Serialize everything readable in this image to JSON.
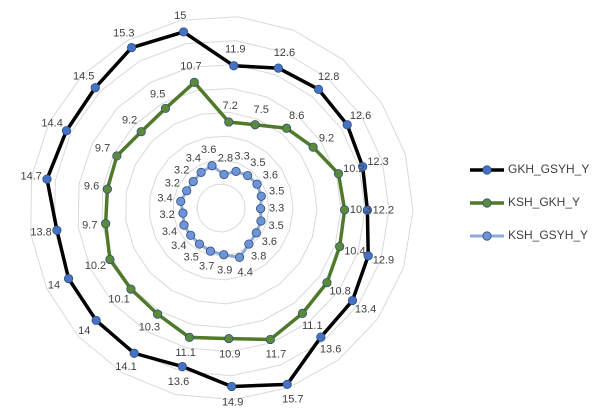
{
  "chart_data": {
    "type": "radar",
    "categories": [
      null,
      null,
      null,
      null,
      null,
      null,
      null,
      null,
      null,
      null,
      null,
      null,
      null,
      null,
      null,
      null,
      null,
      null,
      null,
      null,
      null
    ],
    "series": [
      {
        "name": "GKH_GSYH_Y",
        "color": "#000000",
        "marker_color": "#4472c4",
        "line_width": 3.5,
        "values": [
          15.0,
          11.9,
          12.6,
          12.8,
          12.6,
          12.3,
          12.2,
          12.9,
          13.4,
          13.6,
          15.7,
          14.9,
          13.6,
          14.1,
          14.0,
          14.0,
          13.8,
          14.7,
          14.4,
          14.5,
          15.3
        ]
      },
      {
        "name": "KSH_GKH_Y",
        "color": "#4e7a2a",
        "marker_color": "#5b8a3a",
        "line_width": 3.5,
        "values": [
          10.7,
          7.2,
          7.5,
          8.6,
          9.2,
          10.2,
          10.3,
          10.4,
          10.8,
          11.1,
          11.7,
          10.9,
          11.1,
          10.3,
          10.1,
          10.2,
          9.7,
          9.6,
          9.7,
          9.2,
          9.5
        ]
      },
      {
        "name": "KSH_GSYH_Y",
        "color": "#8faadc",
        "marker_color": "#6f94d6",
        "line_width": 3,
        "values": [
          3.6,
          2.8,
          3.3,
          3.5,
          3.6,
          3.5,
          3.3,
          3.5,
          3.6,
          3.8,
          4.4,
          3.9,
          3.7,
          3.5,
          3.4,
          3.4,
          3.2,
          3.4,
          3.2,
          3.2,
          3.4
        ]
      }
    ],
    "rlim": [
      0,
      16
    ],
    "rticks": [
      0,
      2,
      4,
      6,
      8,
      10,
      12,
      14,
      16
    ],
    "grid": true,
    "legend": "right"
  }
}
